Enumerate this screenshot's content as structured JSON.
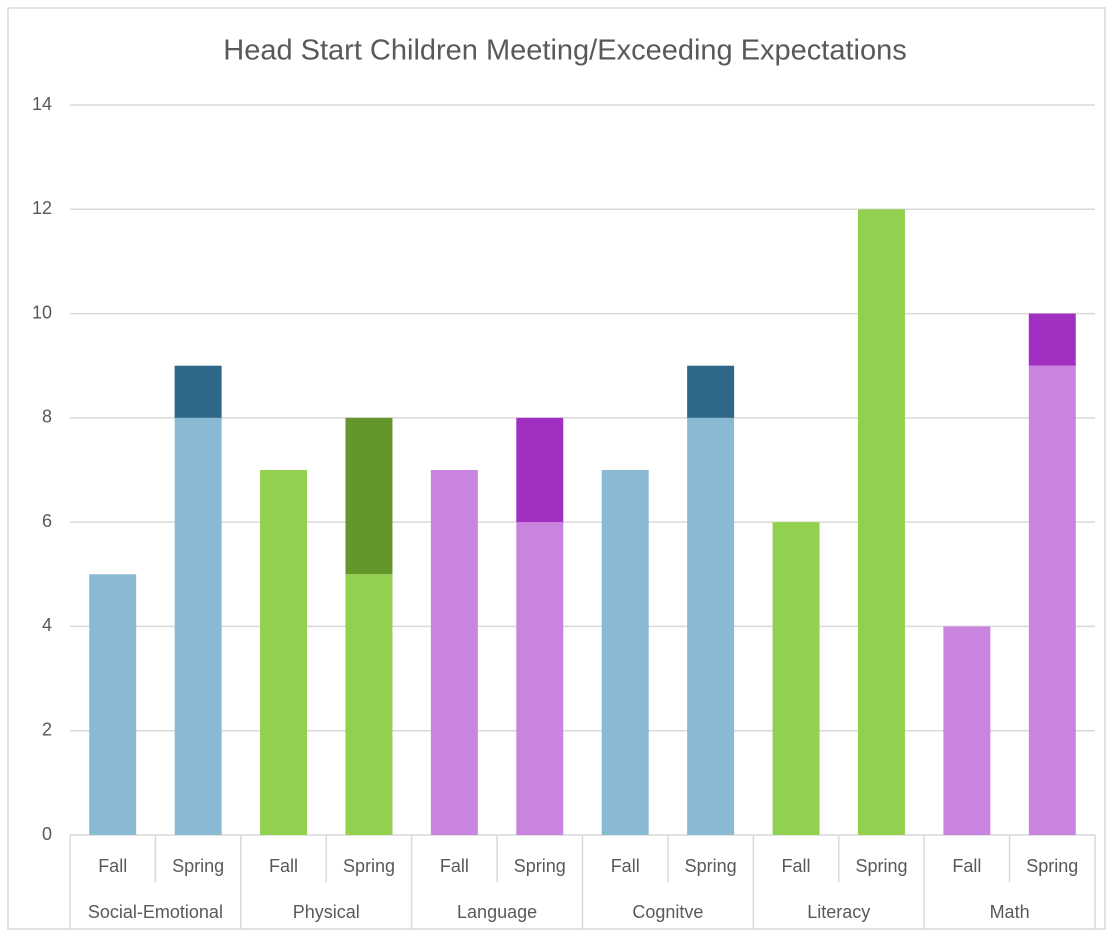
{
  "chart_data": {
    "type": "stacked_bar",
    "title": "Head Start Children Meeting/Exceeding Expectations",
    "categories": [
      "Fall",
      "Spring",
      "Fall",
      "Spring",
      "Fall",
      "Spring",
      "Fall",
      "Spring",
      "Fall",
      "Spring",
      "Fall",
      "Spring"
    ],
    "groups": [
      "Social-Emotional",
      "Physical",
      "Language",
      "Cognitve",
      "Literacy",
      "Math"
    ],
    "series": [
      {
        "values": [
          5,
          8,
          7,
          5,
          7,
          6,
          7,
          8,
          6,
          12,
          4,
          9
        ],
        "colors": [
          "#8ab9d4",
          "#8ab9d4",
          "#92d050",
          "#92d050",
          "#c984e0",
          "#c984e0",
          "#8ab9d4",
          "#8ab9d4",
          "#92d050",
          "#92d050",
          "#c984e0",
          "#c984e0"
        ]
      },
      {
        "values": [
          0,
          1,
          0,
          3,
          0,
          2,
          0,
          1,
          0,
          0,
          0,
          1
        ],
        "colors": [
          "#2e6787",
          "#2e6787",
          "#63972c",
          "#63972c",
          "#a130c2",
          "#a130c2",
          "#2e6787",
          "#2e6787",
          "#63972c",
          "#63972c",
          "#a130c2",
          "#a130c2"
        ]
      }
    ],
    "ylim": [
      0,
      14
    ],
    "yticks": [
      0,
      2,
      4,
      6,
      8,
      10,
      12,
      14
    ],
    "grid": true
  }
}
